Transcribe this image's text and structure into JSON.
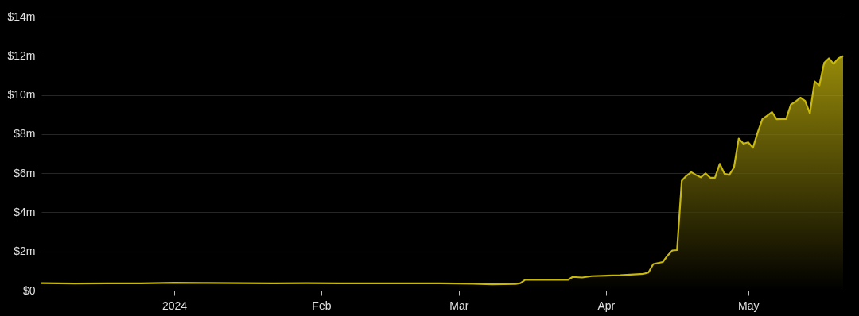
{
  "chart_data": {
    "type": "area",
    "x": [
      "2023-12-04",
      "2023-12-11",
      "2023-12-18",
      "2023-12-25",
      "2024-01-01",
      "2024-01-08",
      "2024-01-15",
      "2024-01-22",
      "2024-01-29",
      "2024-02-05",
      "2024-02-12",
      "2024-02-19",
      "2024-02-26",
      "2024-03-04",
      "2024-03-08",
      "2024-03-13",
      "2024-03-14",
      "2024-03-15",
      "2024-03-20",
      "2024-03-24",
      "2024-03-25",
      "2024-03-27",
      "2024-03-29",
      "2024-04-04",
      "2024-04-09",
      "2024-04-10",
      "2024-04-11",
      "2024-04-13",
      "2024-04-14",
      "2024-04-15",
      "2024-04-16",
      "2024-04-17",
      "2024-04-18",
      "2024-04-19",
      "2024-04-20",
      "2024-04-21",
      "2024-04-22",
      "2024-04-23",
      "2024-04-24",
      "2024-04-25",
      "2024-04-26",
      "2024-04-27",
      "2024-04-28",
      "2024-04-29",
      "2024-04-30",
      "2024-05-01",
      "2024-05-02",
      "2024-05-03",
      "2024-05-04",
      "2024-05-05",
      "2024-05-06",
      "2024-05-07",
      "2024-05-08",
      "2024-05-09",
      "2024-05-10",
      "2024-05-11",
      "2024-05-12",
      "2024-05-13",
      "2024-05-14",
      "2024-05-15",
      "2024-05-16",
      "2024-05-17",
      "2024-05-18",
      "2024-05-19",
      "2024-05-20",
      "2024-05-21"
    ],
    "series": [
      {
        "color": "#c9b80c",
        "values": [
          0.38,
          0.36,
          0.37,
          0.37,
          0.4,
          0.39,
          0.38,
          0.37,
          0.38,
          0.37,
          0.37,
          0.37,
          0.37,
          0.35,
          0.32,
          0.34,
          0.38,
          0.55,
          0.55,
          0.55,
          0.7,
          0.67,
          0.74,
          0.79,
          0.86,
          0.93,
          1.36,
          1.46,
          1.79,
          2.05,
          2.07,
          5.62,
          5.87,
          6.05,
          5.91,
          5.79,
          5.99,
          5.77,
          5.77,
          6.48,
          5.97,
          5.91,
          6.29,
          7.77,
          7.51,
          7.58,
          7.3,
          8.08,
          8.77,
          8.94,
          9.13,
          8.76,
          8.77,
          8.77,
          9.51,
          9.66,
          9.86,
          9.69,
          9.06,
          10.69,
          10.49,
          11.63,
          11.87,
          11.59,
          11.87,
          11.99
        ]
      }
    ],
    "xlim": [
      "2023-12-04",
      "2024-05-21"
    ],
    "xticks": [
      {
        "value": "2024-01-01",
        "label": "2024"
      },
      {
        "value": "2024-02-01",
        "label": "Feb"
      },
      {
        "value": "2024-03-01",
        "label": "Mar"
      },
      {
        "value": "2024-04-01",
        "label": "Apr"
      },
      {
        "value": "2024-05-01",
        "label": "May"
      }
    ],
    "ylim": [
      0,
      14
    ],
    "yticks": [
      {
        "value": 0,
        "label": "$0"
      },
      {
        "value": 2,
        "label": "$2m"
      },
      {
        "value": 4,
        "label": "$4m"
      },
      {
        "value": 6,
        "label": "$6m"
      },
      {
        "value": 8,
        "label": "$8m"
      },
      {
        "value": 10,
        "label": "$10m"
      },
      {
        "value": 12,
        "label": "$12m"
      },
      {
        "value": 14,
        "label": "$14m"
      }
    ],
    "grid": "y"
  }
}
